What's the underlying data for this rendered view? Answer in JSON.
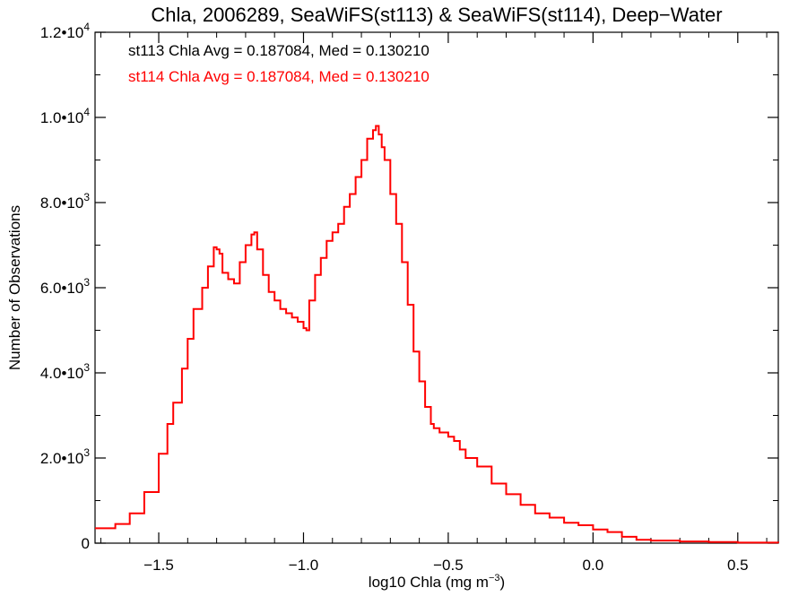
{
  "chart_data": {
    "type": "line",
    "style": "step-histogram",
    "title": "Chla, 2006289, SeaWiFS(st113) & SeaWiFS(st114), Deep−Water",
    "xlabel": "log10 Chla (mg m",
    "xlabel_sup": "−3",
    "xlabel_tail": ")",
    "ylabel": "Number of Observations",
    "xlim": [
      -1.72,
      0.64
    ],
    "ylim": [
      0,
      12000
    ],
    "grid": false,
    "x_ticks": [
      {
        "value": -1.5,
        "label": "−1.5"
      },
      {
        "value": -1.0,
        "label": "−1.0"
      },
      {
        "value": -0.5,
        "label": "−0.5"
      },
      {
        "value": 0.0,
        "label": "0.0"
      },
      {
        "value": 0.5,
        "label": "0.5"
      }
    ],
    "y_ticks": [
      {
        "value": 0,
        "base": "0",
        "exp": ""
      },
      {
        "value": 2000,
        "base": "2.0•10",
        "exp": "3"
      },
      {
        "value": 4000,
        "base": "4.0•10",
        "exp": "3"
      },
      {
        "value": 6000,
        "base": "6.0•10",
        "exp": "3"
      },
      {
        "value": 8000,
        "base": "8.0•10",
        "exp": "3"
      },
      {
        "value": 10000,
        "base": "1.0•10",
        "exp": "4"
      },
      {
        "value": 12000,
        "base": "1.2•10",
        "exp": "4"
      }
    ],
    "annotations": [
      {
        "text": "st113 Chla Avg = 0.187084, Med = 0.130210",
        "color": "#000000"
      },
      {
        "text": "st114 Chla Avg = 0.187084, Med = 0.130210",
        "color": "#ff0000"
      }
    ],
    "series": [
      {
        "color": "#ff0000",
        "x": [
          -1.72,
          -1.65,
          -1.6,
          -1.55,
          -1.5,
          -1.47,
          -1.45,
          -1.42,
          -1.4,
          -1.38,
          -1.35,
          -1.33,
          -1.31,
          -1.3,
          -1.29,
          -1.28,
          -1.26,
          -1.24,
          -1.22,
          -1.2,
          -1.18,
          -1.17,
          -1.16,
          -1.14,
          -1.12,
          -1.1,
          -1.08,
          -1.06,
          -1.04,
          -1.02,
          -1.0,
          -0.99,
          -0.98,
          -0.96,
          -0.94,
          -0.92,
          -0.9,
          -0.88,
          -0.86,
          -0.84,
          -0.82,
          -0.8,
          -0.78,
          -0.76,
          -0.75,
          -0.74,
          -0.73,
          -0.72,
          -0.7,
          -0.68,
          -0.66,
          -0.64,
          -0.62,
          -0.6,
          -0.58,
          -0.56,
          -0.55,
          -0.53,
          -0.5,
          -0.48,
          -0.46,
          -0.44,
          -0.4,
          -0.35,
          -0.3,
          -0.25,
          -0.2,
          -0.15,
          -0.1,
          -0.05,
          0.0,
          0.05,
          0.1,
          0.15,
          0.2,
          0.3,
          0.4,
          0.5,
          0.64
        ],
        "y": [
          350,
          450,
          700,
          1200,
          2100,
          2800,
          3300,
          4100,
          4800,
          5500,
          6000,
          6500,
          6950,
          6900,
          6800,
          6350,
          6200,
          6100,
          6600,
          7000,
          7250,
          7300,
          6900,
          6300,
          5900,
          5700,
          5500,
          5400,
          5300,
          5200,
          5050,
          5000,
          5700,
          6300,
          6700,
          7100,
          7300,
          7500,
          7900,
          8200,
          8600,
          9000,
          9500,
          9700,
          9800,
          9600,
          9300,
          9000,
          8200,
          7500,
          6600,
          5600,
          4500,
          3800,
          3200,
          2800,
          2700,
          2600,
          2500,
          2400,
          2200,
          2000,
          1800,
          1400,
          1150,
          900,
          700,
          600,
          480,
          420,
          320,
          260,
          150,
          80,
          60,
          40,
          25,
          12,
          5
        ]
      }
    ]
  }
}
